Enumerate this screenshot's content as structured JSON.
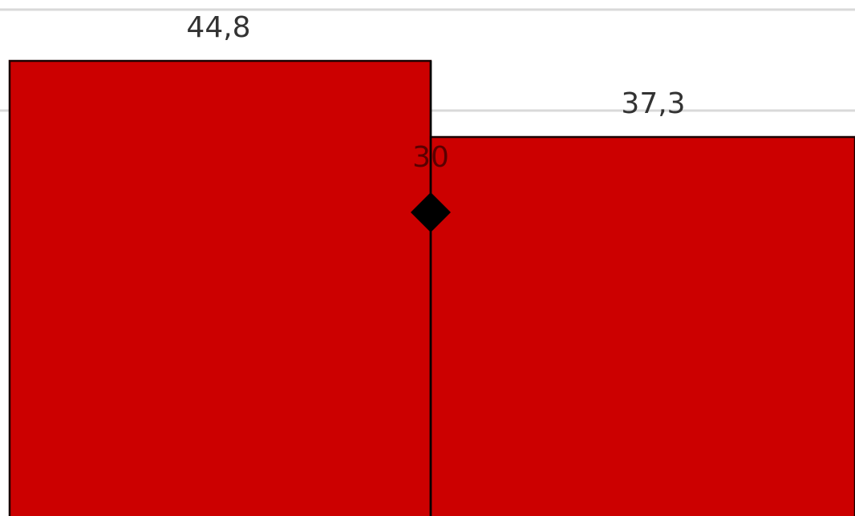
{
  "chart_data": {
    "type": "bar",
    "categories": [
      "",
      ""
    ],
    "values": [
      44.8,
      37.3
    ],
    "value_labels": [
      "44,8",
      "37,3"
    ],
    "bar_color": "#cc0000",
    "target_marker": {
      "value": 30,
      "label": "30",
      "shape": "diamond",
      "color": "#000000"
    },
    "ylim": [
      0,
      50
    ],
    "grid": true,
    "gridline_color": "#d9d9d9",
    "title": "",
    "xlabel": "",
    "ylabel": ""
  }
}
